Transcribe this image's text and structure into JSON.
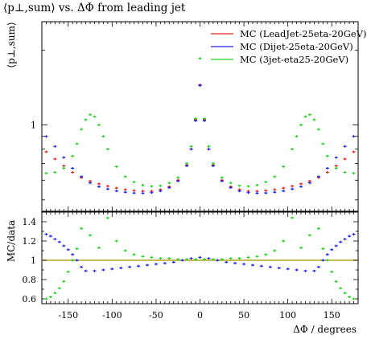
{
  "chart_data": {
    "type": "scatter",
    "title": "⟨p⊥,sum⟩ vs. ΔΦ from leading jet",
    "xlabel": "ΔΦ / degrees",
    "xlim": [
      -180,
      180
    ],
    "xticks": [
      -150,
      -100,
      -50,
      0,
      50,
      100,
      150
    ],
    "top_panel": {
      "ylabel": "⟨p⊥,sum⟩",
      "yscale": "log",
      "yticks_labeled": [
        "1"
      ],
      "legend_position": "top-right",
      "series": [
        {
          "name": "MC (LeadJet-25eta-20GeV)",
          "color": "#e02020",
          "x": [
            -175,
            -165,
            -155,
            -145,
            -135,
            -125,
            -115,
            -105,
            -95,
            -85,
            -75,
            -65,
            -55,
            -45,
            -35,
            -25,
            -15,
            -10,
            -5,
            0,
            5,
            10,
            15,
            25,
            35,
            45,
            55,
            65,
            75,
            85,
            95,
            105,
            115,
            125,
            135,
            145,
            155,
            165,
            175
          ],
          "y": [
            0.78,
            0.73,
            0.685,
            0.645,
            0.615,
            0.595,
            0.58,
            0.568,
            0.558,
            0.55,
            0.545,
            0.542,
            0.542,
            0.55,
            0.565,
            0.6,
            0.69,
            0.8,
            1.05,
            1.45,
            1.05,
            0.8,
            0.69,
            0.6,
            0.565,
            0.55,
            0.542,
            0.542,
            0.545,
            0.55,
            0.558,
            0.568,
            0.58,
            0.595,
            0.615,
            0.645,
            0.685,
            0.73,
            0.78
          ]
        },
        {
          "name": "MC (Dijet-25eta-20GeV)",
          "color": "#2020e0",
          "x": [
            -175,
            -165,
            -155,
            -145,
            -135,
            -125,
            -115,
            -105,
            -95,
            -85,
            -75,
            -65,
            -55,
            -45,
            -35,
            -25,
            -15,
            -10,
            -5,
            0,
            5,
            10,
            15,
            25,
            35,
            45,
            55,
            65,
            75,
            85,
            95,
            105,
            115,
            125,
            135,
            145,
            155,
            165,
            175
          ],
          "y": [
            0.9,
            0.82,
            0.74,
            0.67,
            0.62,
            0.585,
            0.565,
            0.553,
            0.543,
            0.537,
            0.533,
            0.532,
            0.535,
            0.543,
            0.56,
            0.595,
            0.685,
            0.8,
            1.04,
            1.44,
            1.04,
            0.8,
            0.685,
            0.595,
            0.56,
            0.543,
            0.535,
            0.532,
            0.533,
            0.537,
            0.543,
            0.553,
            0.565,
            0.585,
            0.62,
            0.67,
            0.74,
            0.82,
            0.9
          ]
        },
        {
          "name": "MC (3jet-eta25-20GeV)",
          "color": "#20d020",
          "x": [
            -175,
            -165,
            -155,
            -145,
            -140,
            -135,
            -130,
            -125,
            -120,
            -115,
            -110,
            -105,
            -95,
            -85,
            -75,
            -65,
            -55,
            -45,
            -35,
            -25,
            -15,
            -10,
            -5,
            0,
            5,
            10,
            15,
            25,
            35,
            45,
            55,
            65,
            75,
            85,
            95,
            105,
            110,
            115,
            120,
            125,
            130,
            135,
            140,
            145,
            155,
            165,
            175
          ],
          "y": [
            0.64,
            0.645,
            0.67,
            0.75,
            0.84,
            0.96,
            1.05,
            1.1,
            1.08,
            1.0,
            0.9,
            0.8,
            0.68,
            0.62,
            0.59,
            0.573,
            0.567,
            0.57,
            0.585,
            0.615,
            0.7,
            0.82,
            1.06,
            1.85,
            1.06,
            0.82,
            0.7,
            0.615,
            0.585,
            0.57,
            0.567,
            0.573,
            0.59,
            0.62,
            0.68,
            0.8,
            0.9,
            1.0,
            1.08,
            1.1,
            1.05,
            0.96,
            0.84,
            0.75,
            0.67,
            0.645,
            0.64
          ]
        }
      ]
    },
    "ratio_panel": {
      "ylabel": "MC/data",
      "ylim": [
        0.55,
        1.5
      ],
      "yticks": [
        "0.6",
        "0.8",
        "1",
        "1.2",
        "1.4"
      ],
      "reference_line": {
        "y": 1.0,
        "color": "#b8a520"
      },
      "series": [
        {
          "name": "MC (Dijet-25eta-20GeV)",
          "color": "#2020e0",
          "x": [
            -175,
            -170,
            -165,
            -160,
            -155,
            -150,
            -145,
            -140,
            -135,
            -130,
            -120,
            -110,
            -100,
            -90,
            -80,
            -70,
            -60,
            -50,
            -40,
            -30,
            -20,
            -10,
            0,
            10,
            20,
            30,
            40,
            50,
            60,
            70,
            80,
            90,
            100,
            110,
            120,
            130,
            135,
            140,
            145,
            150,
            155,
            160,
            165,
            170,
            175
          ],
          "y": [
            1.27,
            1.25,
            1.22,
            1.19,
            1.15,
            1.11,
            1.06,
            1.0,
            0.93,
            0.89,
            0.89,
            0.9,
            0.91,
            0.92,
            0.93,
            0.94,
            0.95,
            0.96,
            0.97,
            0.98,
            1.0,
            1.02,
            1.03,
            1.02,
            1.0,
            0.98,
            0.97,
            0.96,
            0.95,
            0.94,
            0.93,
            0.92,
            0.91,
            0.9,
            0.89,
            0.89,
            0.93,
            1.0,
            1.06,
            1.11,
            1.15,
            1.19,
            1.22,
            1.25,
            1.27
          ]
        },
        {
          "name": "MC (3jet-eta25-20GeV)",
          "color": "#20d020",
          "x": [
            -175,
            -170,
            -165,
            -160,
            -155,
            -150,
            -145,
            -140,
            -135,
            -125,
            -115,
            -105,
            -95,
            -85,
            -75,
            -65,
            -55,
            -45,
            -35,
            -25,
            -15,
            -5,
            5,
            15,
            25,
            35,
            45,
            55,
            65,
            75,
            85,
            95,
            105,
            115,
            125,
            135,
            140,
            145,
            150,
            155,
            160,
            165,
            170,
            175
          ],
          "y": [
            0.6,
            0.62,
            0.66,
            0.71,
            0.78,
            0.88,
            1.0,
            1.12,
            1.33,
            1.26,
            1.13,
            1.44,
            1.2,
            1.1,
            1.06,
            1.04,
            1.03,
            1.02,
            1.02,
            1.01,
            1.01,
            1.01,
            1.01,
            1.01,
            1.01,
            1.02,
            1.02,
            1.03,
            1.04,
            1.06,
            1.1,
            1.2,
            1.44,
            1.13,
            1.26,
            1.33,
            1.12,
            1.0,
            0.88,
            0.78,
            0.71,
            0.66,
            0.62,
            0.6
          ]
        }
      ]
    }
  }
}
